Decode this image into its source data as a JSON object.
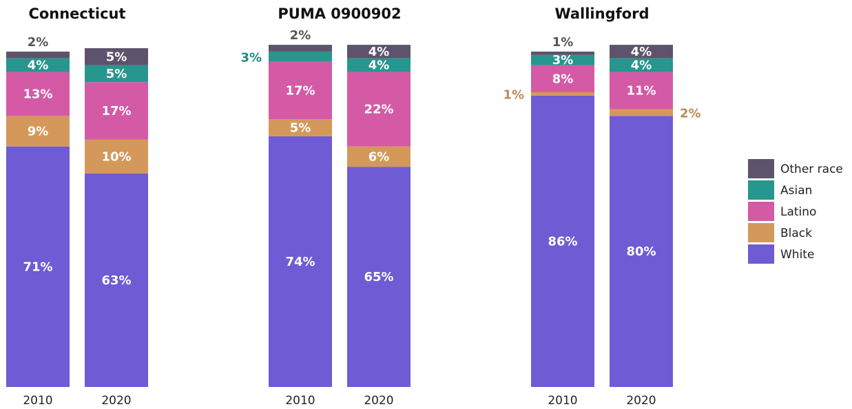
{
  "chart_data": [
    {
      "type": "bar",
      "stacked": true,
      "title": "Connecticut",
      "categories": [
        "2010",
        "2020"
      ],
      "ylim": [
        0,
        100
      ],
      "series": [
        {
          "name": "White",
          "color": "#6f5bd3",
          "values": [
            71,
            63
          ],
          "value_labels": [
            "71%",
            "63%"
          ]
        },
        {
          "name": "Black",
          "color": "#d4995a",
          "values": [
            9,
            10
          ],
          "value_labels": [
            "9%",
            "10%"
          ]
        },
        {
          "name": "Latino",
          "color": "#d45aa6",
          "values": [
            13,
            17
          ],
          "value_labels": [
            "13%",
            "17%"
          ]
        },
        {
          "name": "Asian",
          "color": "#27968e",
          "values": [
            4,
            5
          ],
          "value_labels": [
            "4%",
            "5%"
          ]
        },
        {
          "name": "Other race",
          "color": "#5e536c",
          "values": [
            2,
            5
          ],
          "value_labels": [
            "2%",
            "5%"
          ]
        }
      ]
    },
    {
      "type": "bar",
      "stacked": true,
      "title": "PUMA 0900902",
      "categories": [
        "2010",
        "2020"
      ],
      "ylim": [
        0,
        100
      ],
      "series": [
        {
          "name": "White",
          "color": "#6f5bd3",
          "values": [
            74,
            65
          ],
          "value_labels": [
            "74%",
            "65%"
          ]
        },
        {
          "name": "Black",
          "color": "#d4995a",
          "values": [
            5,
            6
          ],
          "value_labels": [
            "5%",
            "6%"
          ]
        },
        {
          "name": "Latino",
          "color": "#d45aa6",
          "values": [
            17,
            22
          ],
          "value_labels": [
            "17%",
            "22%"
          ]
        },
        {
          "name": "Asian",
          "color": "#27968e",
          "values": [
            3,
            4
          ],
          "value_labels": [
            "3%",
            "4%"
          ]
        },
        {
          "name": "Other race",
          "color": "#5e536c",
          "values": [
            2,
            4
          ],
          "value_labels": [
            "2%",
            "4%"
          ]
        }
      ]
    },
    {
      "type": "bar",
      "stacked": true,
      "title": "Wallingford",
      "categories": [
        "2010",
        "2020"
      ],
      "ylim": [
        0,
        100
      ],
      "series": [
        {
          "name": "White",
          "color": "#6f5bd3",
          "values": [
            86,
            80
          ],
          "value_labels": [
            "86%",
            "80%"
          ]
        },
        {
          "name": "Black",
          "color": "#d4995a",
          "values": [
            1,
            2
          ],
          "value_labels": [
            "1%",
            "2%"
          ]
        },
        {
          "name": "Latino",
          "color": "#d45aa6",
          "values": [
            8,
            11
          ],
          "value_labels": [
            "8%",
            "11%"
          ]
        },
        {
          "name": "Asian",
          "color": "#27968e",
          "values": [
            3,
            4
          ],
          "value_labels": [
            "3%",
            "4%"
          ]
        },
        {
          "name": "Other race",
          "color": "#5e536c",
          "values": [
            1,
            4
          ],
          "value_labels": [
            "1%",
            "4%"
          ]
        }
      ]
    }
  ]
}
